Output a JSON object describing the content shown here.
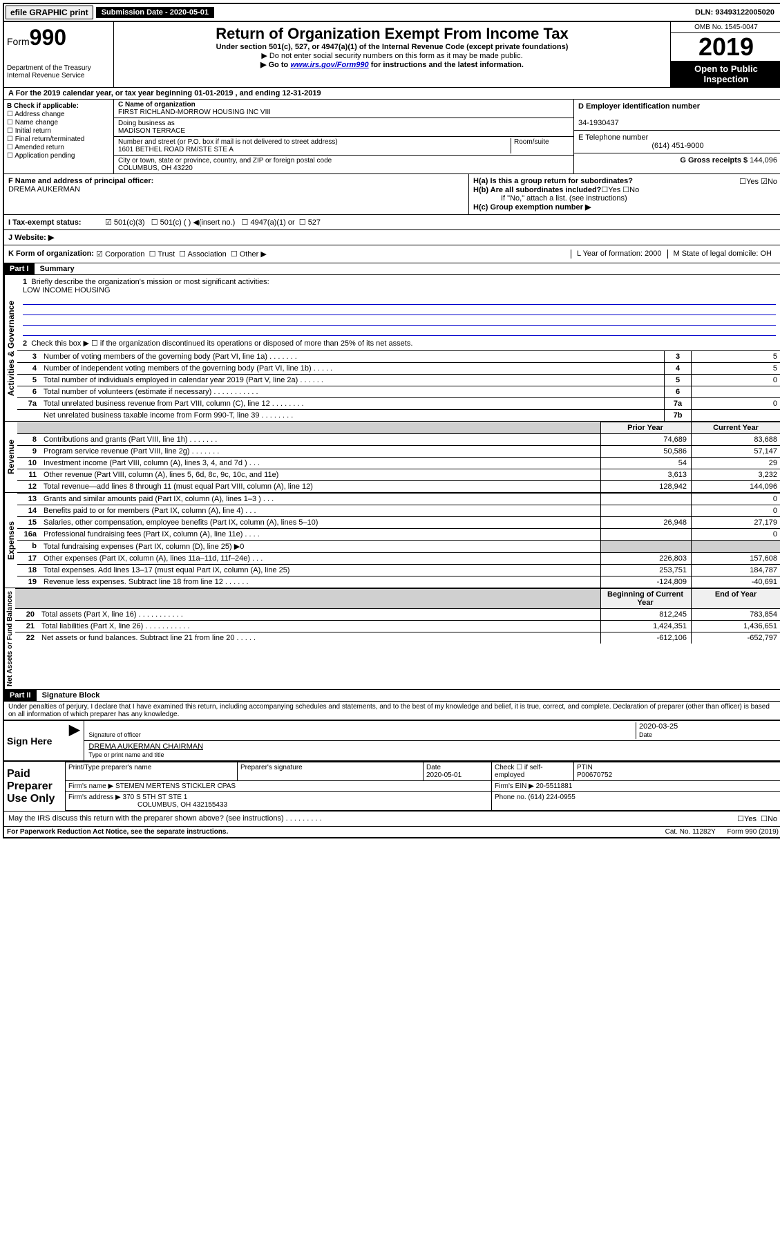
{
  "top": {
    "efile": "efile GRAPHIC print",
    "submission_label": "Submission Date - 2020-05-01",
    "dln": "DLN: 93493122005020"
  },
  "header": {
    "form_word": "Form",
    "form_num": "990",
    "title": "Return of Organization Exempt From Income Tax",
    "sub1": "Under section 501(c), 527, or 4947(a)(1) of the Internal Revenue Code (except private foundations)",
    "sub2": "▶ Do not enter social security numbers on this form as it may be made public.",
    "sub3_pre": "▶ Go to ",
    "sub3_link": "www.irs.gov/Form990",
    "sub3_post": " for instructions and the latest information.",
    "dept": "Department of the Treasury\nInternal Revenue Service",
    "omb": "OMB No. 1545-0047",
    "year": "2019",
    "open": "Open to Public Inspection"
  },
  "row_a": "A For the 2019 calendar year, or tax year beginning 01-01-2019    , and ending 12-31-2019",
  "col_b": {
    "title": "B Check if applicable:",
    "items": [
      "Address change",
      "Name change",
      "Initial return",
      "Final return/terminated",
      "Amended return",
      "Application pending"
    ]
  },
  "col_c": {
    "name_lbl": "C Name of organization",
    "name": "FIRST RICHLAND-MORROW HOUSING INC VIII",
    "dba_lbl": "Doing business as",
    "dba": "MADISON TERRACE",
    "addr_lbl": "Number and street (or P.O. box if mail is not delivered to street address)",
    "room_lbl": "Room/suite",
    "addr": "1601 BETHEL ROAD RM/STE STE A",
    "city_lbl": "City or town, state or province, country, and ZIP or foreign postal code",
    "city": "COLUMBUS, OH  43220"
  },
  "col_d": {
    "ein_lbl": "D Employer identification number",
    "ein": "34-1930437",
    "tel_lbl": "E Telephone number",
    "tel": "(614) 451-9000",
    "gross_lbl": "G Gross receipts $ ",
    "gross": "144,096"
  },
  "row_f": {
    "lbl": "F Name and address of principal officer:",
    "name": "DREMA AUKERMAN"
  },
  "row_h": {
    "ha": "H(a)  Is this a group return for subordinates?",
    "ha_yes": "Yes",
    "ha_no": "No",
    "hb": "H(b)  Are all subordinates included?",
    "hb_yes": "Yes",
    "hb_no": "No",
    "hb_note": "If \"No,\" attach a list. (see instructions)",
    "hc": "H(c)  Group exemption number ▶"
  },
  "row_i": {
    "lbl": "I    Tax-exempt status:",
    "opts": [
      "501(c)(3)",
      "501(c) (  ) ◀(insert no.)",
      "4947(a)(1) or",
      "527"
    ]
  },
  "row_j": {
    "lbl": "J    Website: ▶"
  },
  "row_k": {
    "lbl": "K Form of organization:",
    "opts": [
      "Corporation",
      "Trust",
      "Association",
      "Other ▶"
    ],
    "l": "L Year of formation: 2000",
    "m": "M State of legal domicile: OH"
  },
  "part1": {
    "hdr": "Part I",
    "title": "Summary",
    "q1": "Briefly describe the organization's mission or most significant activities:",
    "mission": "LOW INCOME HOUSING",
    "q2": "Check this box ▶ ☐  if the organization discontinued its operations or disposed of more than 25% of its net assets.",
    "vert_gov": "Activities & Governance",
    "vert_rev": "Revenue",
    "vert_exp": "Expenses",
    "vert_net": "Net Assets or Fund Balances",
    "prior_hdr": "Prior Year",
    "current_hdr": "Current Year",
    "boy_hdr": "Beginning of Current Year",
    "eoy_hdr": "End of Year",
    "lines_gov": [
      {
        "n": "3",
        "t": "Number of voting members of the governing body (Part VI, line 1a)   .    .    .    .    .    .    .",
        "b": "3",
        "v": "5"
      },
      {
        "n": "4",
        "t": "Number of independent voting members of the governing body (Part VI, line 1b)    .    .    .    .    .",
        "b": "4",
        "v": "5"
      },
      {
        "n": "5",
        "t": "Total number of individuals employed in calendar year 2019 (Part V, line 2a)   .    .    .    .    .    .",
        "b": "5",
        "v": "0"
      },
      {
        "n": "6",
        "t": "Total number of volunteers (estimate if necessary)    .    .    .    .    .    .    .    .    .    .    .",
        "b": "6",
        "v": ""
      },
      {
        "n": "7a",
        "t": "Total unrelated business revenue from Part VIII, column (C), line 12   .    .    .    .    .    .    .    .",
        "b": "7a",
        "v": "0"
      },
      {
        "n": "",
        "t": "Net unrelated business taxable income from Form 990-T, line 39    .    .    .    .    .    .    .    .",
        "b": "7b",
        "v": ""
      }
    ],
    "lines_rev": [
      {
        "n": "8",
        "t": "Contributions and grants (Part VIII, line 1h)    .    .    .    .    .    .    .",
        "p": "74,689",
        "c": "83,688"
      },
      {
        "n": "9",
        "t": "Program service revenue (Part VIII, line 2g)    .    .    .    .    .    .    .",
        "p": "50,586",
        "c": "57,147"
      },
      {
        "n": "10",
        "t": "Investment income (Part VIII, column (A), lines 3, 4, and 7d )    .    .    .",
        "p": "54",
        "c": "29"
      },
      {
        "n": "11",
        "t": "Other revenue (Part VIII, column (A), lines 5, 6d, 8c, 9c, 10c, and 11e)",
        "p": "3,613",
        "c": "3,232"
      },
      {
        "n": "12",
        "t": "Total revenue—add lines 8 through 11 (must equal Part VIII, column (A), line 12)",
        "p": "128,942",
        "c": "144,096"
      }
    ],
    "lines_exp": [
      {
        "n": "13",
        "t": "Grants and similar amounts paid (Part IX, column (A), lines 1–3 )    .    .    .",
        "p": "",
        "c": "0"
      },
      {
        "n": "14",
        "t": "Benefits paid to or for members (Part IX, column (A), line 4)    .    .    .",
        "p": "",
        "c": "0"
      },
      {
        "n": "15",
        "t": "Salaries, other compensation, employee benefits (Part IX, column (A), lines 5–10)",
        "p": "26,948",
        "c": "27,179"
      },
      {
        "n": "16a",
        "t": "Professional fundraising fees (Part IX, column (A), line 11e)    .    .    .    .",
        "p": "",
        "c": "0"
      },
      {
        "n": "b",
        "t": "Total fundraising expenses (Part IX, column (D), line 25) ▶0",
        "p": "shade",
        "c": "shade"
      },
      {
        "n": "17",
        "t": "Other expenses (Part IX, column (A), lines 11a–11d, 11f–24e)    .    .    .",
        "p": "226,803",
        "c": "157,608"
      },
      {
        "n": "18",
        "t": "Total expenses. Add lines 13–17 (must equal Part IX, column (A), line 25)",
        "p": "253,751",
        "c": "184,787"
      },
      {
        "n": "19",
        "t": "Revenue less expenses. Subtract line 18 from line 12   .    .    .    .    .    .",
        "p": "-124,809",
        "c": "-40,691"
      }
    ],
    "lines_net": [
      {
        "n": "20",
        "t": "Total assets (Part X, line 16)    .    .    .    .    .    .    .    .    .    .    .",
        "p": "812,245",
        "c": "783,854"
      },
      {
        "n": "21",
        "t": "Total liabilities (Part X, line 26)    .    .    .    .    .    .    .    .    .    .    .",
        "p": "1,424,351",
        "c": "1,436,651"
      },
      {
        "n": "22",
        "t": "Net assets or fund balances. Subtract line 21 from line 20   .    .    .    .    .",
        "p": "-612,106",
        "c": "-652,797"
      }
    ]
  },
  "part2": {
    "hdr": "Part II",
    "title": "Signature Block",
    "perjury": "Under penalties of perjury, I declare that I have examined this return, including accompanying schedules and statements, and to the best of my knowledge and belief, it is true, correct, and complete. Declaration of preparer (other than officer) is based on all information of which preparer has any knowledge.",
    "sign_here": "Sign Here",
    "sig_of_officer": "Signature of officer",
    "date_lbl": "Date",
    "date": "2020-03-25",
    "officer_name": "DREMA AUKERMAN  CHAIRMAN",
    "type_name": "Type or print name and title",
    "paid": "Paid Preparer Use Only",
    "prep_name_lbl": "Print/Type preparer's name",
    "prep_sig_lbl": "Preparer's signature",
    "prep_date_lbl": "Date",
    "prep_date": "2020-05-01",
    "check_self": "Check ☐ if self-employed",
    "ptin_lbl": "PTIN",
    "ptin": "P00670752",
    "firm_name_lbl": "Firm's name    ▶",
    "firm_name": "STEMEN MERTENS STICKLER CPAS",
    "firm_ein_lbl": "Firm's EIN ▶",
    "firm_ein": "20-5511881",
    "firm_addr_lbl": "Firm's address ▶",
    "firm_addr": "370 S 5TH ST STE 1",
    "firm_city": "COLUMBUS, OH  432155433",
    "phone_lbl": "Phone no.",
    "phone": "(614) 224-0955",
    "discuss": "May the IRS discuss this return with the preparer shown above? (see instructions)    .    .    .    .    .    .    .    .    .",
    "discuss_yes": "Yes",
    "discuss_no": "No"
  },
  "footer": {
    "pra": "For Paperwork Reduction Act Notice, see the separate instructions.",
    "cat": "Cat. No. 11282Y",
    "form": "Form 990 (2019)"
  }
}
